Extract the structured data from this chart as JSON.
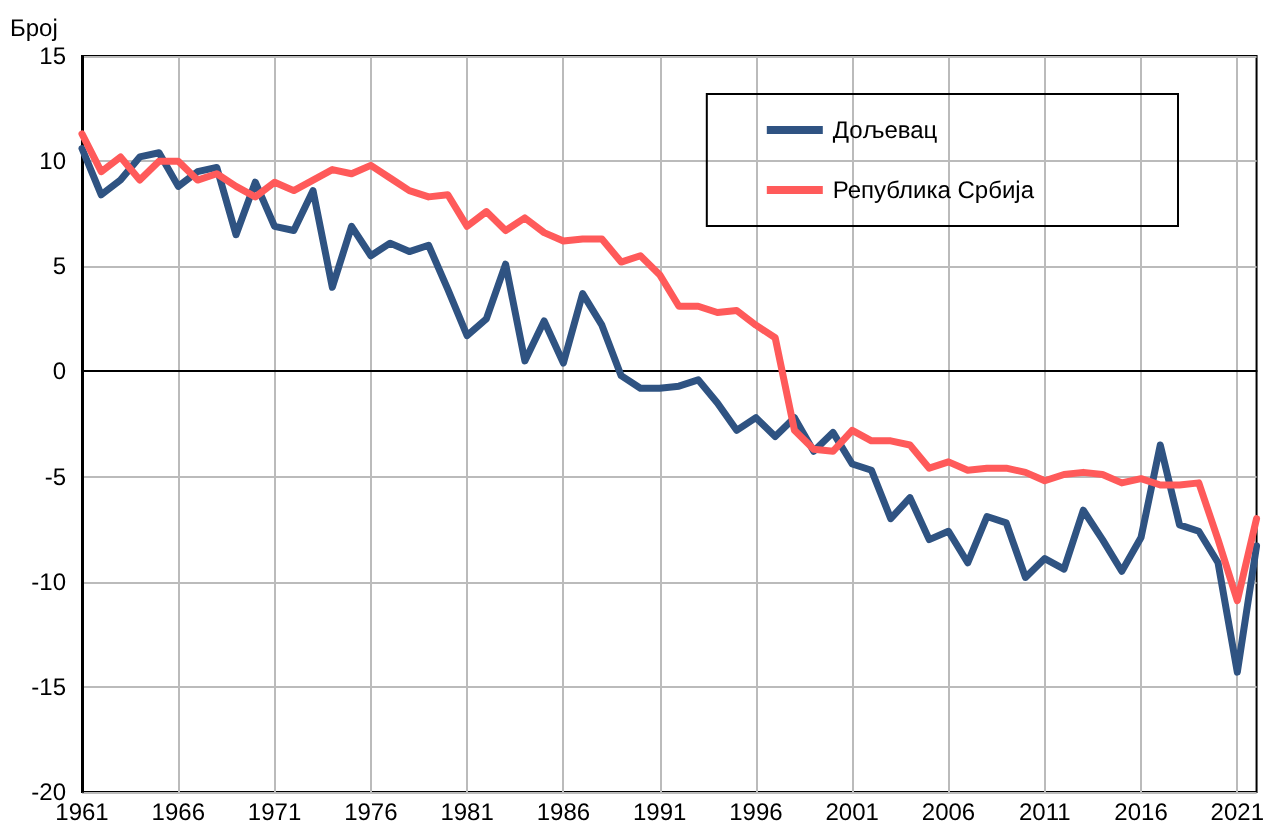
{
  "chart_data": {
    "type": "line",
    "ylabel": "Број",
    "x": [
      1961,
      1962,
      1963,
      1964,
      1965,
      1966,
      1967,
      1968,
      1969,
      1970,
      1971,
      1972,
      1973,
      1974,
      1975,
      1976,
      1977,
      1978,
      1979,
      1980,
      1981,
      1982,
      1983,
      1984,
      1985,
      1986,
      1987,
      1988,
      1989,
      1990,
      1991,
      1992,
      1993,
      1994,
      1995,
      1996,
      1997,
      1998,
      1999,
      2000,
      2001,
      2002,
      2003,
      2004,
      2005,
      2006,
      2007,
      2008,
      2009,
      2010,
      2011,
      2012,
      2013,
      2014,
      2015,
      2016,
      2017,
      2018,
      2019,
      2020,
      2021,
      2022
    ],
    "series": [
      {
        "name": "Дољевац",
        "color": "#2f5382",
        "values": [
          10.6,
          8.4,
          9.1,
          10.2,
          10.4,
          8.8,
          9.5,
          9.7,
          6.5,
          9.0,
          6.9,
          6.7,
          8.6,
          4.0,
          6.9,
          5.5,
          6.1,
          5.7,
          6.0,
          3.9,
          1.7,
          2.5,
          5.1,
          0.5,
          2.4,
          0.4,
          3.7,
          2.2,
          -0.2,
          -0.8,
          -0.8,
          -0.7,
          -0.4,
          -1.5,
          -2.8,
          -2.2,
          -3.1,
          -2.2,
          -3.8,
          -2.9,
          -4.4,
          -4.7,
          -7.0,
          -6.0,
          -8.0,
          -7.6,
          -9.1,
          -6.9,
          -7.2,
          -9.8,
          -8.9,
          -9.4,
          -6.6,
          -8.0,
          -9.5,
          -7.9,
          -3.5,
          -7.3,
          -7.6,
          -9.1,
          -14.3,
          -8.3
        ]
      },
      {
        "name": "Република Србија",
        "color": "#ff5a5a",
        "values": [
          11.3,
          9.5,
          10.2,
          9.1,
          10.0,
          10.0,
          9.1,
          9.4,
          8.8,
          8.3,
          9.0,
          8.6,
          9.1,
          9.6,
          9.4,
          9.8,
          9.2,
          8.6,
          8.3,
          8.4,
          6.9,
          7.6,
          6.7,
          7.3,
          6.6,
          6.2,
          6.3,
          6.3,
          5.2,
          5.5,
          4.6,
          3.1,
          3.1,
          2.8,
          2.9,
          2.2,
          1.6,
          -2.8,
          -3.7,
          -3.8,
          -2.8,
          -3.3,
          -3.3,
          -3.5,
          -4.6,
          -4.3,
          -4.7,
          -4.6,
          -4.6,
          -4.8,
          -5.2,
          -4.9,
          -4.8,
          -4.9,
          -5.3,
          -5.1,
          -5.4,
          -5.4,
          -5.3,
          -8.0,
          -10.9,
          -7.0
        ]
      }
    ],
    "xlim": [
      1961,
      2022
    ],
    "xticks": [
      1961,
      1966,
      1971,
      1976,
      1981,
      1986,
      1991,
      1996,
      2001,
      2006,
      2011,
      2016,
      2021
    ],
    "ylim": [
      -20,
      15
    ],
    "yticks": [
      -20,
      -15,
      -10,
      -5,
      0,
      5,
      10,
      15
    ],
    "grid": true,
    "legend": "top right",
    "marker": "none",
    "line_style": "solid"
  }
}
